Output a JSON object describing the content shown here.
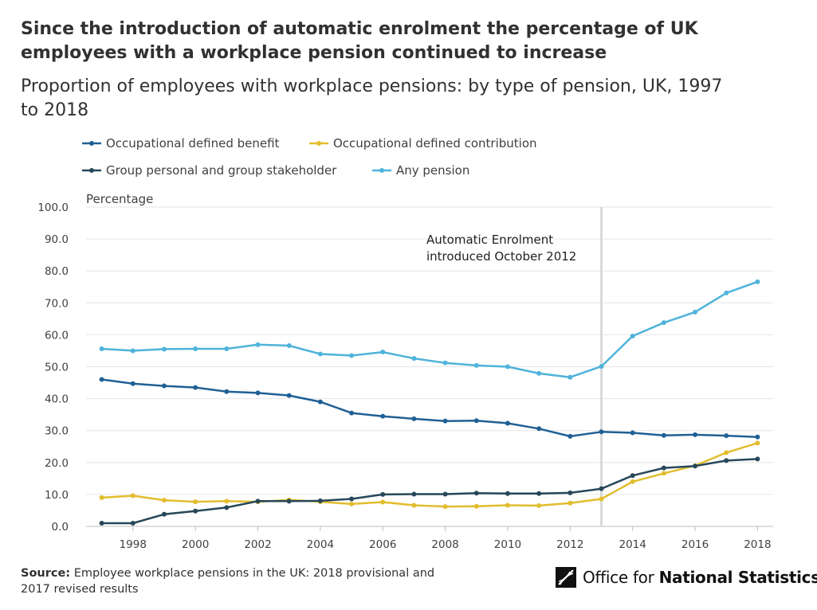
{
  "header": {
    "headline": "Since the introduction of automatic enrolment the percentage of UK employees with a workplace pension continued to increase",
    "subtitle": "Proportion of employees with workplace pensions: by type of pension, UK, 1997 to 2018"
  },
  "chart_data": {
    "type": "line",
    "ylabel": "Percentage",
    "ylim": [
      0,
      100
    ],
    "yticks": [
      "0.0",
      "10.0",
      "20.0",
      "30.0",
      "40.0",
      "50.0",
      "60.0",
      "70.0",
      "80.0",
      "90.0",
      "100.0"
    ],
    "xlim": [
      1996.5,
      2018.5
    ],
    "xticks": [
      "1998",
      "2000",
      "2002",
      "2004",
      "2006",
      "2008",
      "2010",
      "2012",
      "2014",
      "2016",
      "2018"
    ],
    "x": [
      1997,
      1998,
      1999,
      2000,
      2001,
      2002,
      2003,
      2004,
      2005,
      2006,
      2007,
      2008,
      2009,
      2010,
      2011,
      2012,
      2013,
      2014,
      2015,
      2016,
      2017,
      2018
    ],
    "grid": "horizontal",
    "legend_position": "top",
    "annotation": {
      "x": 2013,
      "label_lines": [
        "Automatic Enrolment",
        "introduced October 2012"
      ]
    },
    "series": [
      {
        "name": "Occupational defined benefit",
        "color": "#206095",
        "values": [
          46.0,
          44.7,
          44.0,
          43.5,
          42.2,
          41.8,
          41.0,
          39.0,
          35.5,
          34.5,
          33.7,
          33.0,
          33.1,
          32.3,
          30.6,
          28.2,
          29.6,
          29.3,
          28.5,
          28.7,
          28.4,
          28.0
        ]
      },
      {
        "name": "Occupational defined contribution",
        "color": "#E2BD2E",
        "values": [
          9.0,
          9.6,
          8.2,
          7.7,
          7.9,
          7.7,
          8.3,
          7.7,
          7.0,
          7.6,
          6.6,
          6.2,
          6.3,
          6.6,
          6.5,
          7.3,
          8.6,
          14.0,
          16.6,
          19.0,
          23.1,
          26.1
        ]
      },
      {
        "name": "Group personal and group stakeholder",
        "color": "#27475A",
        "values": [
          1.0,
          1.0,
          3.8,
          4.8,
          5.9,
          7.9,
          7.9,
          8.0,
          8.6,
          10.0,
          10.1,
          10.1,
          10.4,
          10.3,
          10.3,
          10.5,
          11.8,
          15.9,
          18.3,
          18.9,
          20.6,
          21.1
        ]
      },
      {
        "name": "Any pension",
        "color": "#4FB3DA",
        "values": [
          55.6,
          55.0,
          55.5,
          55.6,
          55.6,
          56.9,
          56.6,
          54.0,
          53.5,
          54.6,
          52.6,
          51.2,
          50.4,
          50.0,
          47.9,
          46.7,
          50.1,
          59.6,
          63.8,
          67.1,
          73.1,
          76.6
        ]
      }
    ]
  },
  "footer": {
    "source_label": "Source:",
    "source_text": "Employee workplace pensions in the UK: 2018 provisional and 2017 revised results",
    "logo_text_regular": "Office for ",
    "logo_text_bold": "National Statistics"
  }
}
